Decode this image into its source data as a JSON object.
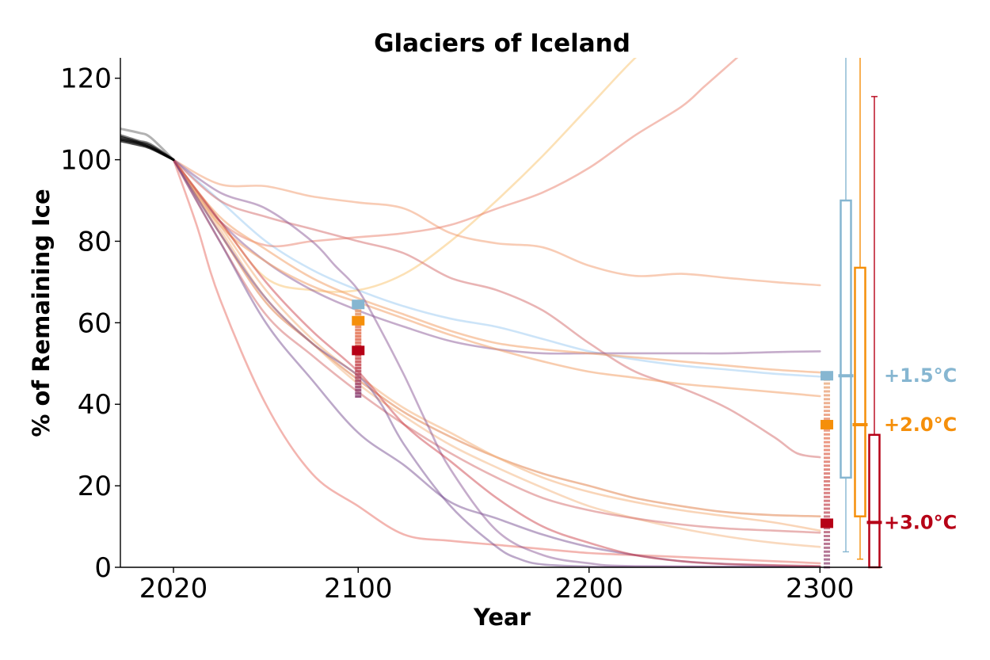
{
  "chart_data": {
    "type": "line",
    "title": "Glaciers of Iceland",
    "xlabel": "Year",
    "ylabel": "% of Remaining Ice",
    "xlim": [
      1997,
      2327
    ],
    "ylim": [
      0,
      125
    ],
    "xticks": [
      2020,
      2100,
      2200,
      2300
    ],
    "yticks": [
      0,
      20,
      40,
      60,
      80,
      100,
      120
    ],
    "grid": false,
    "spines": "left and bottom only",
    "colors": {
      "scenario_1_5": "#86b6d1",
      "scenario_2_0": "#f58f0a",
      "scenario_3_0": "#b60016",
      "historical": "#000000"
    },
    "historical": {
      "lines": [
        {
          "x": [
            1997,
            2005,
            2010,
            2020
          ],
          "y": [
            105.0,
            104.0,
            103.0,
            100.0
          ],
          "opacity": 0.85
        },
        {
          "x": [
            1997,
            2005,
            2010,
            2020
          ],
          "y": [
            105.6,
            104.3,
            103.4,
            100.0
          ],
          "opacity": 0.75
        },
        {
          "x": [
            1997,
            2005,
            2010,
            2020
          ],
          "y": [
            104.6,
            103.6,
            102.8,
            100.0
          ],
          "opacity": 0.7
        },
        {
          "x": [
            1997,
            2005,
            2010,
            2020
          ],
          "y": [
            106.0,
            104.6,
            103.8,
            100.0
          ],
          "opacity": 0.5
        },
        {
          "x": [
            1997,
            2005,
            2010,
            2020
          ],
          "y": [
            107.6,
            106.6,
            105.5,
            100.0
          ],
          "opacity": 0.3
        }
      ]
    },
    "series": [
      {
        "color": "#8fc3f0",
        "opacity": 0.45,
        "x": [
          2020,
          2040,
          2060,
          2080,
          2100,
          2120,
          2140,
          2160,
          2180,
          2200,
          2220,
          2240,
          2260,
          2280,
          2300
        ],
        "y": [
          100,
          90,
          80,
          73,
          68,
          64,
          61,
          59,
          56,
          53,
          51,
          49.5,
          48.5,
          47.5,
          46.8
        ]
      },
      {
        "color": "#f9c97a",
        "opacity": 0.55,
        "x": [
          2020,
          2040,
          2060,
          2080,
          2100,
          2120,
          2140,
          2160,
          2180,
          2200,
          2220,
          2240
        ],
        "y": [
          100,
          85,
          71,
          68,
          68,
          72,
          80,
          90,
          101,
          113,
          125,
          135
        ]
      },
      {
        "color": "#ef8f5a",
        "opacity": 0.45,
        "x": [
          2020,
          2040,
          2060,
          2080,
          2100,
          2120,
          2140,
          2160,
          2180,
          2200,
          2220,
          2240,
          2260,
          2280,
          2300
        ],
        "y": [
          100,
          94,
          93.5,
          91,
          89.5,
          88,
          82,
          79.5,
          78.5,
          74,
          71.5,
          72,
          71,
          70,
          69.2
        ]
      },
      {
        "color": "#e6705a",
        "opacity": 0.45,
        "x": [
          2020,
          2040,
          2060,
          2080,
          2100,
          2120,
          2140,
          2160,
          2180,
          2200,
          2220,
          2240,
          2250,
          2260,
          2270
        ],
        "y": [
          100,
          85,
          79,
          80,
          81,
          82,
          84,
          88,
          92,
          98,
          106,
          113,
          118,
          123,
          128
        ]
      },
      {
        "color": "#d46a6a",
        "opacity": 0.5,
        "x": [
          2020,
          2040,
          2060,
          2080,
          2100,
          2120,
          2140,
          2160,
          2180,
          2200,
          2220,
          2240,
          2260,
          2280,
          2290,
          2300
        ],
        "y": [
          100,
          90,
          86,
          83,
          80,
          77,
          71,
          68,
          63,
          55,
          48,
          44,
          39,
          32,
          28,
          27
        ]
      },
      {
        "color": "#8c5a98",
        "opacity": 0.5,
        "x": [
          2020,
          2040,
          2060,
          2080,
          2100,
          2120,
          2140,
          2160,
          2180,
          2200,
          2220,
          2240,
          2260,
          2280,
          2300
        ],
        "y": [
          100,
          85,
          75,
          68,
          63,
          59,
          55.5,
          53.5,
          52.5,
          52.5,
          52.5,
          52.5,
          52.5,
          52.8,
          53
        ]
      },
      {
        "color": "#f2a36b",
        "opacity": 0.55,
        "x": [
          2020,
          2040,
          2060,
          2080,
          2100,
          2120,
          2140,
          2160,
          2180,
          2200,
          2220,
          2240,
          2260,
          2280,
          2300
        ],
        "y": [
          100,
          86,
          78,
          71,
          66,
          62,
          58,
          55,
          53.5,
          52.5,
          51.5,
          50.5,
          49.5,
          48.5,
          47.8
        ]
      },
      {
        "color": "#f2a36b",
        "opacity": 0.55,
        "x": [
          2020,
          2040,
          2060,
          2080,
          2100,
          2120,
          2140,
          2160,
          2180,
          2200,
          2220,
          2240,
          2260,
          2280,
          2300
        ],
        "y": [
          100,
          84,
          75,
          69,
          65,
          61,
          57,
          53.5,
          50.5,
          48,
          46.5,
          45,
          44,
          43,
          42
        ]
      },
      {
        "color": "#e07a40",
        "opacity": 0.5,
        "x": [
          2020,
          2040,
          2060,
          2080,
          2100,
          2120,
          2140,
          2160,
          2180,
          2200,
          2220,
          2240,
          2260,
          2280,
          2300
        ],
        "y": [
          100,
          82,
          65,
          55,
          46,
          38,
          32,
          27,
          23,
          20,
          17,
          15,
          13.5,
          12.8,
          12.5
        ]
      },
      {
        "color": "#f4b37e",
        "opacity": 0.55,
        "x": [
          2020,
          2040,
          2060,
          2080,
          2100,
          2120,
          2140,
          2160,
          2180,
          2200,
          2220,
          2240,
          2260,
          2280,
          2300
        ],
        "y": [
          100,
          84,
          68,
          56,
          47,
          39,
          33,
          27,
          22,
          18.5,
          16,
          14,
          12.5,
          11,
          9
        ]
      },
      {
        "color": "#f4b37e",
        "opacity": 0.5,
        "x": [
          2020,
          2040,
          2060,
          2080,
          2100,
          2120,
          2140,
          2160,
          2180,
          2200,
          2220,
          2240,
          2260,
          2280,
          2300
        ],
        "y": [
          100,
          83,
          66,
          55,
          45,
          37,
          30,
          24.5,
          19.5,
          15,
          12,
          9.5,
          7.5,
          6,
          5
        ]
      },
      {
        "color": "#d46a6a",
        "opacity": 0.5,
        "x": [
          2020,
          2040,
          2060,
          2080,
          2100,
          2120,
          2140,
          2160,
          2180,
          2200,
          2220,
          2240,
          2260,
          2280,
          2300
        ],
        "y": [
          100,
          80,
          62,
          52,
          43,
          35,
          28,
          22,
          17,
          14,
          12,
          10.5,
          9.5,
          9,
          8.5
        ]
      },
      {
        "color": "#e0453a",
        "opacity": 0.4,
        "x": [
          2020,
          2030,
          2040,
          2060,
          2080,
          2100,
          2120,
          2140,
          2160,
          2180,
          2200,
          2220,
          2240,
          2260,
          2280,
          2300
        ],
        "y": [
          100,
          84,
          66,
          40,
          23,
          15,
          8,
          6.5,
          5.5,
          4.5,
          3.5,
          3,
          2.5,
          2,
          1.5,
          1
        ]
      },
      {
        "color": "#6b3d87",
        "opacity": 0.45,
        "x": [
          2020,
          2040,
          2060,
          2080,
          2100,
          2120,
          2140,
          2160,
          2180,
          2200,
          2220,
          2240,
          2260,
          2280,
          2300
        ],
        "y": [
          100,
          80,
          60,
          46,
          33,
          25,
          16,
          12,
          8,
          5,
          3,
          1.5,
          0.8,
          0.4,
          0.2
        ]
      },
      {
        "color": "#6b3d87",
        "opacity": 0.45,
        "x": [
          2020,
          2040,
          2060,
          2080,
          2100,
          2110,
          2120,
          2140,
          2160,
          2170,
          2180,
          2200,
          2220,
          2300
        ],
        "y": [
          100,
          82,
          66,
          55,
          47,
          40,
          30,
          15,
          5,
          2,
          0.7,
          0.2,
          0.1,
          0.1
        ]
      },
      {
        "color": "#8c5a98",
        "opacity": 0.5,
        "x": [
          2020,
          2040,
          2060,
          2080,
          2090,
          2100,
          2110,
          2120,
          2130,
          2140,
          2160,
          2180,
          2200,
          2220,
          2300
        ],
        "y": [
          100,
          92,
          88,
          80,
          74,
          68,
          58,
          47,
          35,
          24,
          9,
          3,
          1,
          0.3,
          0.1
        ]
      },
      {
        "color": "#c8303a",
        "opacity": 0.45,
        "x": [
          2020,
          2040,
          2060,
          2080,
          2100,
          2120,
          2140,
          2160,
          2180,
          2200,
          2220,
          2240,
          2260,
          2300
        ],
        "y": [
          100,
          85,
          70,
          58,
          48,
          35,
          26,
          17,
          10,
          6,
          3,
          1.5,
          0.8,
          0.3
        ]
      }
    ],
    "markers_2100": [
      {
        "scenario": "+1.5°C",
        "color": "#86b6d1",
        "value": 64.5
      },
      {
        "scenario": "+2.0°C",
        "color": "#f58f0a",
        "value": 60.5
      },
      {
        "scenario": "+3.0°C",
        "color": "#b60016",
        "value": 53.2
      }
    ],
    "markers_2300": [
      {
        "scenario": "+1.5°C",
        "color": "#86b6d1",
        "value": 47.0
      },
      {
        "scenario": "+2.0°C",
        "color": "#f58f0a",
        "value": 35.0
      },
      {
        "scenario": "+3.0°C",
        "color": "#b60016",
        "value": 10.8
      }
    ],
    "boxplots": [
      {
        "label": "+1.5°C",
        "color": "#86b6d1",
        "whisker_low": 3.8,
        "q1": 22,
        "median": 47,
        "q3": 90,
        "whisker_high": 125
      },
      {
        "label": "+2.0°C",
        "color": "#f58f0a",
        "whisker_low": 2.0,
        "q1": 12.5,
        "median": 35,
        "q3": 73.5,
        "whisker_high": 125
      },
      {
        "label": "+3.0°C",
        "color": "#b60016",
        "whisker_low": 0,
        "q1": 0,
        "median": 11,
        "q3": 32.5,
        "whisker_high": 115.5
      }
    ]
  }
}
